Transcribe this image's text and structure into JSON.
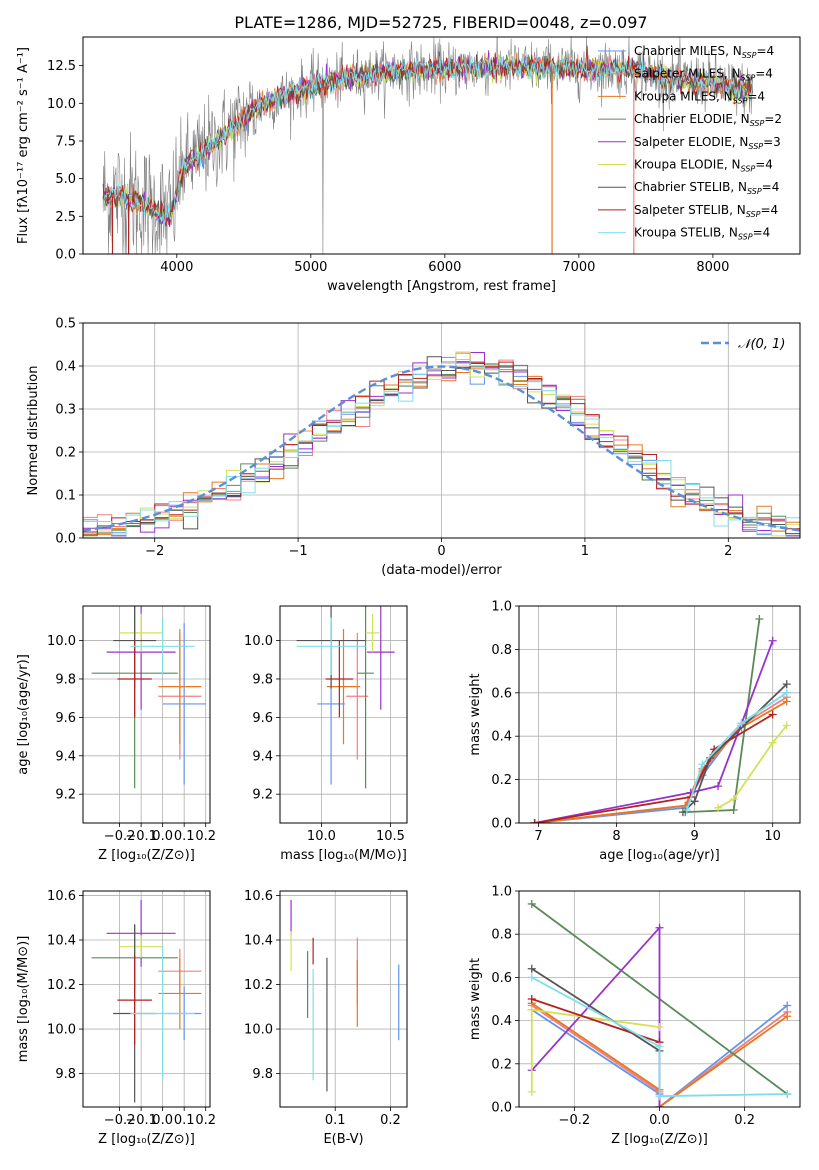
{
  "figure": {
    "title": "PLATE=1286, MJD=52725, FIBERID=0048, z=0.097"
  },
  "colors": {
    "grid": "#b0b0b0",
    "spectrum": "#808080",
    "gauss": "#5b8fd9"
  },
  "models": [
    {
      "label": "Chabrier MILES, N",
      "sub": "SSP",
      "tail": "=4",
      "color": "#6495ed"
    },
    {
      "label": "Salpeter MILES, N",
      "sub": "SSP",
      "tail": "=4",
      "color": "#f08080"
    },
    {
      "label": "Kroupa MILES, N",
      "sub": "SSP",
      "tail": "=4",
      "color": "#e87722"
    },
    {
      "label": "Chabrier ELODIE, N",
      "sub": "SSP",
      "tail": "=2",
      "color": "#5a8a5a"
    },
    {
      "label": "Salpeter ELODIE, N",
      "sub": "SSP",
      "tail": "=3",
      "color": "#9932cc"
    },
    {
      "label": "Kroupa ELODIE, N",
      "sub": "SSP",
      "tail": "=4",
      "color": "#d4e157"
    },
    {
      "label": "Chabrier STELIB, N",
      "sub": "SSP",
      "tail": "=4",
      "color": "#555555"
    },
    {
      "label": "Salpeter STELIB, N",
      "sub": "SSP",
      "tail": "=4",
      "color": "#b22222"
    },
    {
      "label": "Kroupa STELIB, N",
      "sub": "SSP",
      "tail": "=4",
      "color": "#80deea"
    }
  ],
  "chart_data": [
    {
      "id": "spectrum",
      "type": "line",
      "xlabel": "wavelength [Angstrom, rest frame]",
      "ylabel": "Flux [fλ10⁻¹⁷ erg cm⁻² s⁻¹ A⁻¹]",
      "xlim": [
        3300,
        8650
      ],
      "ylim": [
        0,
        14.4
      ],
      "xticks": [
        4000,
        5000,
        6000,
        7000,
        8000
      ],
      "yticks": [
        0.0,
        2.5,
        5.0,
        7.5,
        10.0,
        12.5
      ],
      "grid": false,
      "legend": "right",
      "continuum": [
        [
          3400,
          3.7
        ],
        [
          3600,
          3.9
        ],
        [
          3800,
          3.0
        ],
        [
          3950,
          2.4
        ],
        [
          4050,
          5.8
        ],
        [
          4300,
          7.5
        ],
        [
          4600,
          9.8
        ],
        [
          5000,
          11.2
        ],
        [
          5500,
          12.0
        ],
        [
          6000,
          12.3
        ],
        [
          6500,
          12.4
        ],
        [
          7000,
          12.3
        ],
        [
          7400,
          12.3
        ],
        [
          7700,
          11.6
        ],
        [
          8000,
          11.4
        ],
        [
          8250,
          10.9
        ]
      ],
      "data_range": [
        3450,
        8300
      ]
    },
    {
      "id": "residuals",
      "type": "histogram",
      "xlabel": "(data-model)/error",
      "ylabel": "Normed distribution",
      "xlim": [
        -2.5,
        2.5
      ],
      "ylim": [
        0,
        0.5
      ],
      "xticks": [
        -2,
        -1,
        0,
        1,
        2
      ],
      "yticks": [
        0.0,
        0.1,
        0.2,
        0.3,
        0.4,
        0.5
      ],
      "grid": true,
      "legend": "top-right",
      "gauss_label": "𝒩(0, 1)",
      "bin_edges_range": [
        -2.5,
        2.5
      ],
      "bins": 50,
      "shift": 0.2
    },
    {
      "id": "age-Z",
      "type": "errorbar",
      "xlabel": "Z [log₁₀(Z/Z⊙)]",
      "ylabel": "age  [log₁₀(age/yr)]",
      "xlim": [
        -0.37,
        0.22
      ],
      "ylim": [
        9.05,
        10.18
      ],
      "xticks": [
        -0.2,
        -0.1,
        0.0,
        0.1,
        0.2
      ],
      "yticks": [
        9.2,
        9.4,
        9.6,
        9.8,
        10.0
      ],
      "grid": true,
      "points": [
        {
          "m": 0,
          "x": 0.1,
          "xe": 0.1,
          "y": 9.67,
          "ye": 0.42
        },
        {
          "m": 1,
          "x": 0.08,
          "xe": 0.1,
          "y": 9.71,
          "ye": 0.33
        },
        {
          "m": 2,
          "x": 0.08,
          "xe": 0.1,
          "y": 9.76,
          "ye": 0.3
        },
        {
          "m": 3,
          "x": -0.13,
          "xe": 0.2,
          "y": 9.83,
          "ye": 0.6
        },
        {
          "m": 4,
          "x": -0.1,
          "xe": 0.16,
          "y": 9.94,
          "ye": 0.3
        },
        {
          "m": 5,
          "x": -0.1,
          "xe": 0.1,
          "y": 10.04,
          "ye": 0.1
        },
        {
          "m": 6,
          "x": -0.13,
          "xe": 0.1,
          "y": 10.0,
          "ye": 0.25
        },
        {
          "m": 7,
          "x": -0.13,
          "xe": 0.08,
          "y": 9.8,
          "ye": 0.2
        },
        {
          "m": 8,
          "x": 0.0,
          "xe": 0.15,
          "y": 9.97,
          "ye": 0.15
        }
      ]
    },
    {
      "id": "age-mass",
      "type": "errorbar",
      "xlabel": "mass [log₁₀(M/M⊙)]",
      "ylabel": "",
      "xlim": [
        9.7,
        10.62
      ],
      "ylim": [
        9.05,
        10.18
      ],
      "xticks": [
        10.0,
        10.5
      ],
      "yticks": [
        9.2,
        9.4,
        9.6,
        9.8,
        10.0
      ],
      "grid": true,
      "points": [
        {
          "m": 0,
          "x": 10.07,
          "xe": 0.1,
          "y": 9.67,
          "ye": 0.42
        },
        {
          "m": 1,
          "x": 10.26,
          "xe": 0.08,
          "y": 9.71,
          "ye": 0.33
        },
        {
          "m": 2,
          "x": 10.16,
          "xe": 0.12,
          "y": 9.76,
          "ye": 0.3
        },
        {
          "m": 3,
          "x": 10.32,
          "xe": 0.06,
          "y": 9.83,
          "ye": 0.6
        },
        {
          "m": 4,
          "x": 10.43,
          "xe": 0.1,
          "y": 9.94,
          "ye": 0.3
        },
        {
          "m": 5,
          "x": 10.37,
          "xe": 0.05,
          "y": 10.04,
          "ye": 0.1
        },
        {
          "m": 6,
          "x": 10.07,
          "xe": 0.25,
          "y": 10.0,
          "ye": 0.25
        },
        {
          "m": 7,
          "x": 10.13,
          "xe": 0.1,
          "y": 9.8,
          "ye": 0.2
        },
        {
          "m": 8,
          "x": 10.07,
          "xe": 0.25,
          "y": 9.97,
          "ye": 0.15
        }
      ]
    },
    {
      "id": "weight-age",
      "type": "line",
      "xlabel": "age  [log₁₀(age/yr)]",
      "ylabel": "mass weight",
      "xlim": [
        6.75,
        10.35
      ],
      "ylim": [
        0,
        1.0
      ],
      "xticks": [
        7,
        8,
        9,
        10
      ],
      "yticks": [
        0.0,
        0.2,
        0.4,
        0.6,
        0.8,
        1.0
      ],
      "grid": true,
      "series": [
        {
          "m": 0,
          "x": [
            6.95,
            8.88,
            9.1,
            9.6,
            10.18
          ],
          "y": [
            0.0,
            0.07,
            0.22,
            0.46,
            0.6
          ]
        },
        {
          "m": 1,
          "x": [
            6.95,
            8.88,
            9.1,
            9.6,
            10.18
          ],
          "y": [
            0.0,
            0.08,
            0.24,
            0.45,
            0.58
          ]
        },
        {
          "m": 2,
          "x": [
            6.95,
            8.88,
            9.1,
            9.6,
            10.18
          ],
          "y": [
            0.0,
            0.08,
            0.25,
            0.44,
            0.56
          ]
        },
        {
          "m": 3,
          "x": [
            8.88,
            9.5,
            9.83
          ],
          "y": [
            0.05,
            0.06,
            0.94
          ]
        },
        {
          "m": 4,
          "x": [
            6.95,
            8.95,
            9.3,
            10.0
          ],
          "y": [
            0.0,
            0.14,
            0.17,
            0.84
          ]
        },
        {
          "m": 5,
          "x": [
            9.3,
            9.5,
            10.0,
            10.18
          ],
          "y": [
            0.07,
            0.11,
            0.37,
            0.45
          ]
        },
        {
          "m": 6,
          "x": [
            8.85,
            9.0,
            9.2,
            10.18
          ],
          "y": [
            0.05,
            0.1,
            0.3,
            0.64
          ]
        },
        {
          "m": 7,
          "x": [
            6.95,
            8.95,
            9.25,
            10.0
          ],
          "y": [
            0.0,
            0.12,
            0.34,
            0.5
          ]
        },
        {
          "m": 8,
          "x": [
            8.9,
            9.1,
            9.6,
            10.18
          ],
          "y": [
            0.06,
            0.27,
            0.46,
            0.6
          ]
        }
      ]
    },
    {
      "id": "mass-Z",
      "type": "errorbar",
      "xlabel": "Z [log₁₀(Z/Z⊙)]",
      "ylabel": "mass [log₁₀(M/M⊙)]",
      "xlim": [
        -0.37,
        0.22
      ],
      "ylim": [
        9.65,
        10.62
      ],
      "xticks": [
        -0.2,
        -0.1,
        0.0,
        0.1,
        0.2
      ],
      "yticks": [
        9.8,
        10.0,
        10.2,
        10.4,
        10.6
      ],
      "grid": true,
      "points": [
        {
          "m": 0,
          "x": 0.1,
          "xe": 0.08,
          "y": 10.07,
          "ye": 0.12
        },
        {
          "m": 1,
          "x": 0.08,
          "xe": 0.1,
          "y": 10.26,
          "ye": 0.1
        },
        {
          "m": 2,
          "x": 0.08,
          "xe": 0.1,
          "y": 10.16,
          "ye": 0.16
        },
        {
          "m": 3,
          "x": -0.13,
          "xe": 0.2,
          "y": 10.32,
          "ye": 0.15
        },
        {
          "m": 4,
          "x": -0.1,
          "xe": 0.16,
          "y": 10.43,
          "ye": 0.15
        },
        {
          "m": 5,
          "x": -0.1,
          "xe": 0.1,
          "y": 10.37,
          "ye": 0.05
        },
        {
          "m": 6,
          "x": -0.13,
          "xe": 0.1,
          "y": 10.07,
          "ye": 0.4
        },
        {
          "m": 7,
          "x": -0.13,
          "xe": 0.08,
          "y": 10.13,
          "ye": 0.2
        },
        {
          "m": 8,
          "x": 0.0,
          "xe": 0.15,
          "y": 10.07,
          "ye": 0.3
        }
      ]
    },
    {
      "id": "mass-EBV",
      "type": "errorbar",
      "xlabel": "E(B-V)",
      "ylabel": "",
      "xlim": [
        0.0,
        0.23
      ],
      "ylim": [
        9.65,
        10.62
      ],
      "xticks": [
        0.1,
        0.2
      ],
      "yticks": [
        9.8,
        10.0,
        10.2,
        10.4,
        10.6
      ],
      "grid": true,
      "points": [
        {
          "m": 0,
          "x": 0.215,
          "xe": 0,
          "y": 10.12,
          "ye": 0.17
        },
        {
          "m": 1,
          "x": 0.14,
          "xe": 0,
          "y": 10.26,
          "ye": 0.15
        },
        {
          "m": 2,
          "x": 0.14,
          "xe": 0,
          "y": 10.16,
          "ye": 0.15
        },
        {
          "m": 3,
          "x": 0.05,
          "xe": 0,
          "y": 10.2,
          "ye": 0.15
        },
        {
          "m": 4,
          "x": 0.02,
          "xe": 0,
          "y": 10.5,
          "ye": 0.08
        },
        {
          "m": 5,
          "x": 0.02,
          "xe": 0,
          "y": 10.35,
          "ye": 0.09
        },
        {
          "m": 6,
          "x": 0.085,
          "xe": 0,
          "y": 10.02,
          "ye": 0.3
        },
        {
          "m": 7,
          "x": 0.06,
          "xe": 0,
          "y": 10.35,
          "ye": 0.06
        },
        {
          "m": 8,
          "x": 0.06,
          "xe": 0,
          "y": 10.02,
          "ye": 0.25
        }
      ]
    },
    {
      "id": "weight-Z",
      "type": "line",
      "xlabel": "Z [log₁₀(Z/Z⊙)]",
      "ylabel": "mass weight",
      "xlim": [
        -0.33,
        0.33
      ],
      "ylim": [
        0,
        1.0
      ],
      "xticks": [
        -0.2,
        0.0,
        0.2
      ],
      "yticks": [
        0.0,
        0.2,
        0.4,
        0.6,
        0.8,
        1.0
      ],
      "grid": true,
      "series": [
        {
          "m": 0,
          "x": [
            -0.3,
            0.0,
            0.0,
            0.3
          ],
          "y": [
            0.45,
            0.06,
            0.0,
            0.47
          ]
        },
        {
          "m": 1,
          "x": [
            -0.3,
            0.0,
            0.0,
            0.3
          ],
          "y": [
            0.47,
            0.07,
            0.0,
            0.44
          ]
        },
        {
          "m": 2,
          "x": [
            -0.3,
            0.0,
            0.0,
            0.3
          ],
          "y": [
            0.48,
            0.08,
            0.0,
            0.42
          ]
        },
        {
          "m": 3,
          "x": [
            -0.3,
            0.3
          ],
          "y": [
            0.94,
            0.06
          ]
        },
        {
          "m": 4,
          "x": [
            -0.3,
            0.0,
            0.0
          ],
          "y": [
            0.17,
            0.83,
            0.0
          ]
        },
        {
          "m": 5,
          "x": [
            -0.3,
            -0.3,
            0.0
          ],
          "y": [
            0.07,
            0.45,
            0.37
          ]
        },
        {
          "m": 6,
          "x": [
            -0.3,
            0.0
          ],
          "y": [
            0.64,
            0.26
          ]
        },
        {
          "m": 7,
          "x": [
            -0.3,
            0.0
          ],
          "y": [
            0.5,
            0.3
          ]
        },
        {
          "m": 8,
          "x": [
            -0.3,
            0.0,
            0.0,
            0.3
          ],
          "y": [
            0.6,
            0.28,
            0.05,
            0.06
          ]
        }
      ]
    }
  ]
}
